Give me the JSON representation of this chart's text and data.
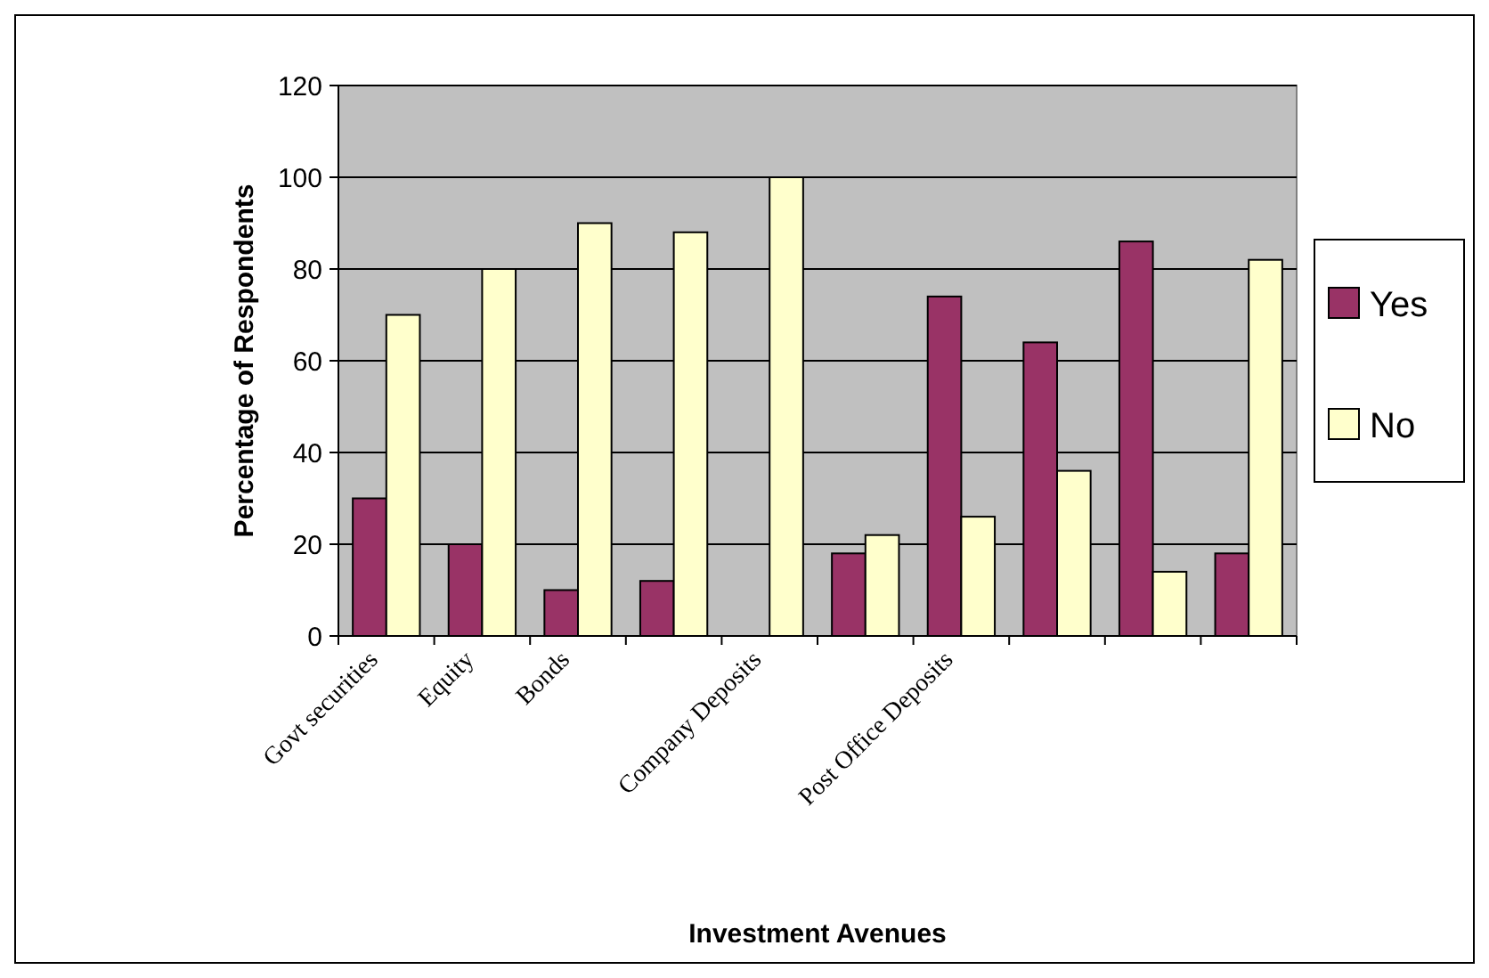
{
  "chart_data": {
    "type": "bar",
    "xlabel": "Investment  Avenues",
    "ylabel": "Percentage of Respondents",
    "categories": [
      "Govt securities",
      "Equity",
      "Bonds",
      null,
      "Company Deposits",
      null,
      "Post Office Deposits",
      null,
      null,
      null
    ],
    "series": [
      {
        "name": "Yes",
        "color": "#993366",
        "values": [
          30,
          20,
          10,
          12,
          0,
          18,
          74,
          64,
          86,
          18
        ]
      },
      {
        "name": "No",
        "color": "#ffffcc",
        "values": [
          70,
          80,
          90,
          88,
          100,
          22,
          26,
          36,
          14,
          82
        ]
      }
    ],
    "ylim": [
      0,
      120
    ],
    "yticks": [
      0,
      20,
      40,
      60,
      80,
      100,
      120
    ],
    "grid": "y",
    "legend": "right"
  }
}
